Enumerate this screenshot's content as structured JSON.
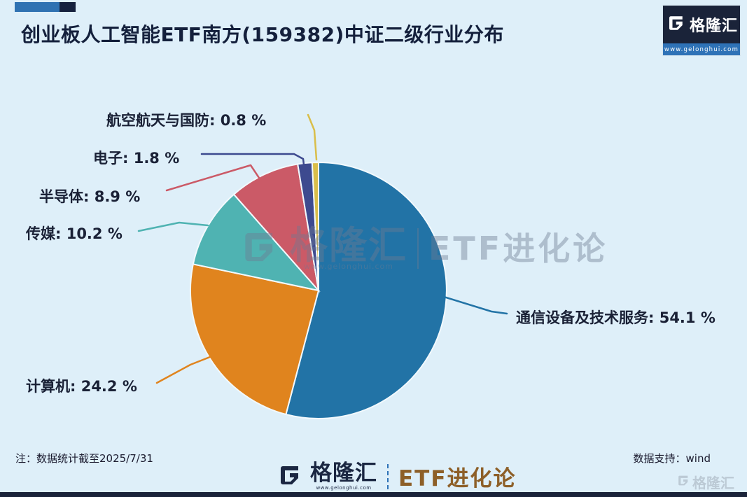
{
  "page": {
    "background": "#DEEFF9"
  },
  "header": {
    "title": "创业板人工智能ETF南方(159382)中证二级行业分布",
    "logo_brand": "格隆汇",
    "logo_url": "www.gelonghui.com"
  },
  "chart_data": {
    "type": "pie",
    "title": "创业板人工智能ETF南方(159382)中证二级行业分布",
    "unit": "percent",
    "direction": "clockwise",
    "start_angle_deg": 0,
    "legend_position": "callout-labels",
    "slices": [
      {
        "label": "通信设备及技术服务",
        "value": 54.1,
        "display": "通信设备及技术服务: 54.1 %",
        "color": "#2273A6"
      },
      {
        "label": "计算机",
        "value": 24.2,
        "display": "计算机: 24.2 %",
        "color": "#E0841E"
      },
      {
        "label": "传媒",
        "value": 10.2,
        "display": "传媒: 10.2 %",
        "color": "#4FB3B2"
      },
      {
        "label": "半导体",
        "value": 8.9,
        "display": "半导体: 8.9 %",
        "color": "#CB5A67"
      },
      {
        "label": "电子",
        "value": 1.8,
        "display": "电子: 1.8 %",
        "color": "#3D4A8F"
      },
      {
        "label": "航空航天与国防",
        "value": 0.8,
        "display": "航空航天与国防: 0.8 %",
        "color": "#D9BE4A"
      }
    ]
  },
  "watermark": {
    "brand": "格隆汇",
    "url": "www.gelonghui.com",
    "series": "ETF进化论"
  },
  "footer": {
    "note": "注：数据统计截至2025/7/31",
    "brand": "格隆汇",
    "brand_url": "www.gelonghui.com",
    "series": "ETF进化论",
    "data_support": "数据支持：wind",
    "corner_brand": "格隆汇"
  }
}
